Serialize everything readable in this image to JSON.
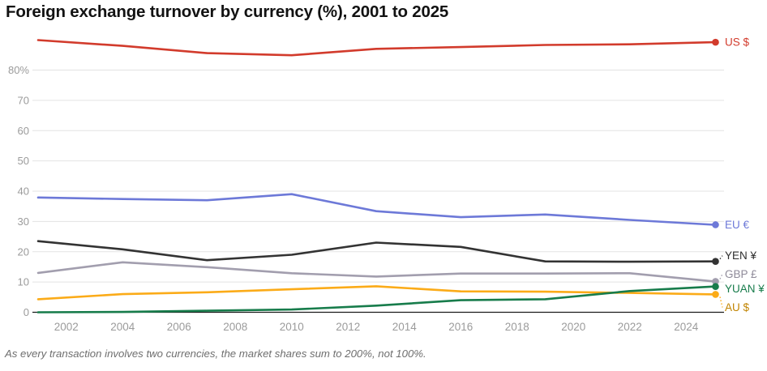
{
  "title": "Foreign exchange turnover by currency (%), 2001 to 2025",
  "footnote": "As every transaction involves two currencies, the market shares sum to 200%, not 100%.",
  "colors": {
    "grid": "#e3e3e3",
    "baseline": "#1b1b1b",
    "tick_text": "#9b9b9b",
    "title_text": "#121212",
    "footnote_text": "#6e6e6e"
  },
  "chart_data": {
    "type": "line",
    "title": "Foreign exchange turnover by currency (%), 2001 to 2025",
    "xlabel": "",
    "ylabel": "",
    "x": [
      2001,
      2004,
      2007,
      2010,
      2013,
      2016,
      2019,
      2022,
      2025
    ],
    "xlim": [
      2001,
      2025
    ],
    "ylim": [
      0,
      92
    ],
    "grid": true,
    "legend_position": "right-end-labels",
    "x_ticks": [
      {
        "v": 2002,
        "label": "2002"
      },
      {
        "v": 2004,
        "label": "2004"
      },
      {
        "v": 2006,
        "label": "2006"
      },
      {
        "v": 2008,
        "label": "2008"
      },
      {
        "v": 2010,
        "label": "2010"
      },
      {
        "v": 2012,
        "label": "2012"
      },
      {
        "v": 2014,
        "label": "2014"
      },
      {
        "v": 2016,
        "label": "2016"
      },
      {
        "v": 2018,
        "label": "2018"
      },
      {
        "v": 2020,
        "label": "2020"
      },
      {
        "v": 2022,
        "label": "2022"
      },
      {
        "v": 2024,
        "label": "2024"
      }
    ],
    "y_ticks": [
      {
        "v": 0,
        "label": "0"
      },
      {
        "v": 10,
        "label": "10"
      },
      {
        "v": 20,
        "label": "20"
      },
      {
        "v": 30,
        "label": "30"
      },
      {
        "v": 40,
        "label": "40"
      },
      {
        "v": 50,
        "label": "50"
      },
      {
        "v": 60,
        "label": "60"
      },
      {
        "v": 70,
        "label": "70"
      },
      {
        "v": 80,
        "label": "80%"
      }
    ],
    "series": [
      {
        "name": "US $",
        "color": "#d23b2c",
        "label_color": "#d23b2c",
        "label_at": 89.2,
        "values": [
          89.9,
          88.0,
          85.6,
          84.9,
          87.0,
          87.6,
          88.3,
          88.5,
          89.2
        ]
      },
      {
        "name": "EU €",
        "color": "#6d79d8",
        "label_color": "#6d79d8",
        "label_at": 28.9,
        "values": [
          37.9,
          37.4,
          37.0,
          39.0,
          33.4,
          31.4,
          32.3,
          30.5,
          28.9
        ]
      },
      {
        "name": "YEN ¥",
        "color": "#333333",
        "label_color": "#2e2e2e",
        "label_at": 18.7,
        "values": [
          23.5,
          20.8,
          17.2,
          19.0,
          23.0,
          21.6,
          16.8,
          16.7,
          16.8
        ]
      },
      {
        "name": "GBP £",
        "color": "#a29eae",
        "label_color": "#8e8a99",
        "label_at": 12.6,
        "values": [
          13.0,
          16.5,
          14.9,
          12.9,
          11.8,
          12.8,
          12.8,
          12.9,
          10.2
        ]
      },
      {
        "name": "AU $",
        "color": "#fbab18",
        "label_color": "#c18401",
        "label_at": 1.6,
        "values": [
          4.3,
          6.0,
          6.6,
          7.6,
          8.6,
          6.9,
          6.8,
          6.4,
          5.9
        ]
      },
      {
        "name": "YUAN ¥",
        "color": "#177c4b",
        "label_color": "#177c4b",
        "label_at": 7.7,
        "values": [
          0.0,
          0.1,
          0.5,
          0.9,
          2.2,
          4.0,
          4.3,
          7.0,
          8.5
        ]
      }
    ]
  }
}
